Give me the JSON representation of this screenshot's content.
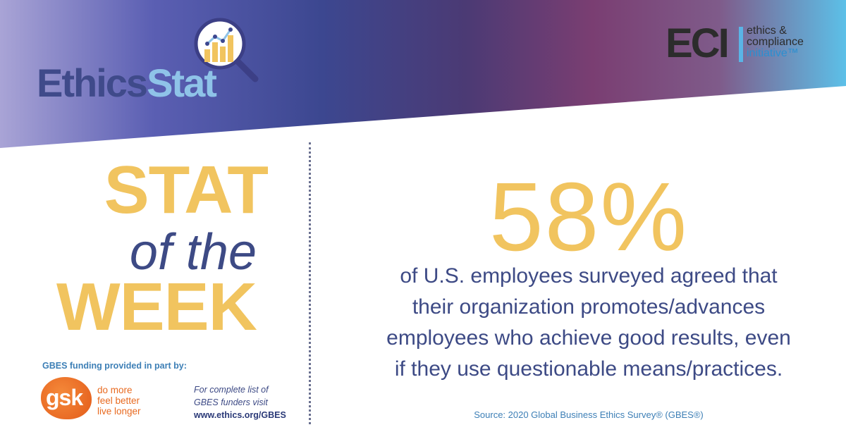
{
  "header": {
    "logo_ethics": "Ethics",
    "logo_stat": "Stat",
    "eci_initials": "ECI",
    "eci_line1": "ethics &",
    "eci_line2": "compliance",
    "eci_line3": "initiative™"
  },
  "title": {
    "line1": "STAT",
    "line2": "of the",
    "line3": "WEEK"
  },
  "stat": {
    "value": "58%",
    "lines": [
      "of U.S. employees surveyed agreed that",
      "their organization promotes/advances",
      "employees who achieve good results, even",
      "if they use questionable means/practices."
    ],
    "source": "Source: 2020 Global Business Ethics Survey® (GBES®)"
  },
  "funding": {
    "label": "GBES funding provided in part by:",
    "sponsor_logo": "gsk",
    "sponsor_tagline": [
      "do more",
      "feel better",
      "live longer"
    ],
    "funders_line1": "For complete list of",
    "funders_line2": "GBES funders visit",
    "funders_url": "www.ethics.org/GBES"
  },
  "colors": {
    "accent_yellow": "#f1c45f",
    "navy": "#3d4a85",
    "light_blue": "#8fc3e8",
    "gsk_orange": "#e86a20"
  }
}
